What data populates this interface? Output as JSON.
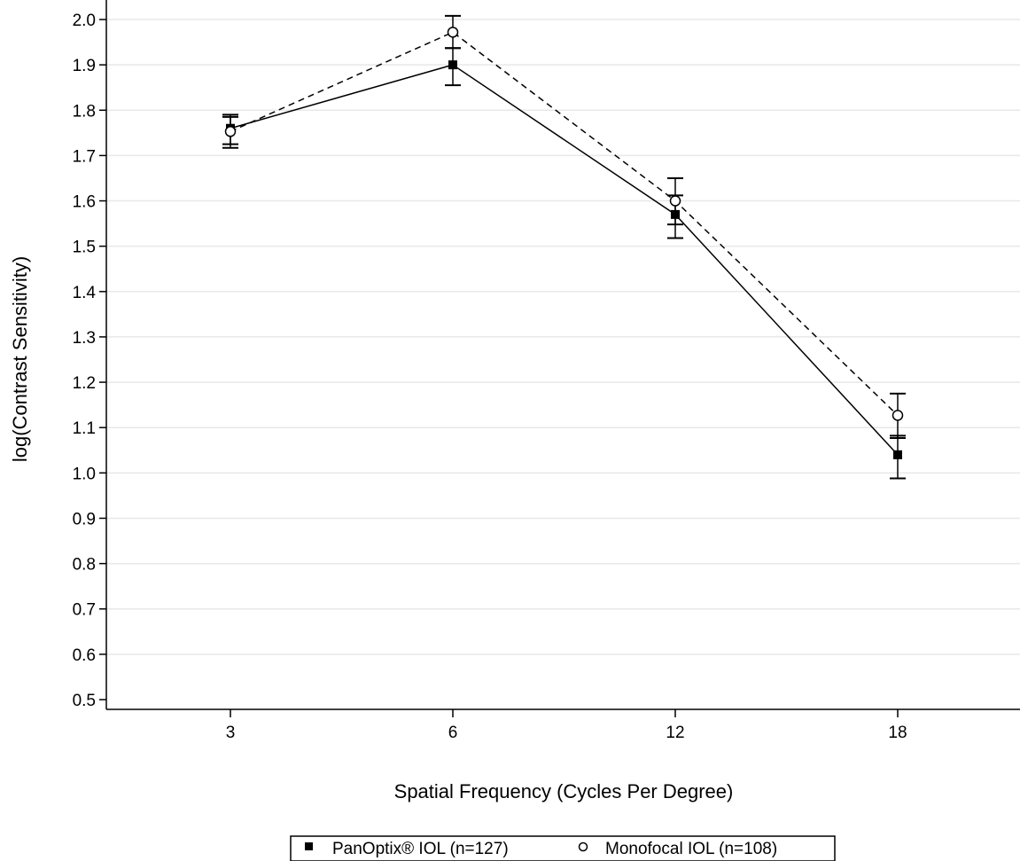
{
  "chart_data": {
    "type": "line",
    "xlabel": "Spatial Frequency (Cycles Per Degree)",
    "ylabel": "log(Contrast Sensitivity)",
    "categories": [
      "3",
      "6",
      "12",
      "18"
    ],
    "ylim": [
      0.5,
      2.0
    ],
    "yticks": [
      "0.5",
      "0.6",
      "0.7",
      "0.8",
      "0.9",
      "1.0",
      "1.1",
      "1.2",
      "1.3",
      "1.4",
      "1.5",
      "1.6",
      "1.7",
      "1.8",
      "1.9",
      "2.0"
    ],
    "grid": true,
    "legend_position": "bottom",
    "series": [
      {
        "name": "PanOptix® IOL (n=127)",
        "marker": "filled-square",
        "line_style": "solid",
        "values": [
          1.76,
          1.9,
          1.57,
          1.04
        ],
        "error_low": [
          1.725,
          1.855,
          1.518,
          0.988
        ],
        "error_high": [
          1.79,
          1.937,
          1.612,
          1.082
        ]
      },
      {
        "name": "Monofocal IOL (n=108)",
        "marker": "open-circle",
        "line_style": "dashed",
        "values": [
          1.753,
          1.972,
          1.6,
          1.127
        ],
        "error_low": [
          1.717,
          1.937,
          1.548,
          1.077
        ],
        "error_high": [
          1.785,
          2.008,
          1.65,
          1.175
        ]
      }
    ],
    "colors": {
      "line": "#000000",
      "grid": "#e8e8e8"
    }
  }
}
